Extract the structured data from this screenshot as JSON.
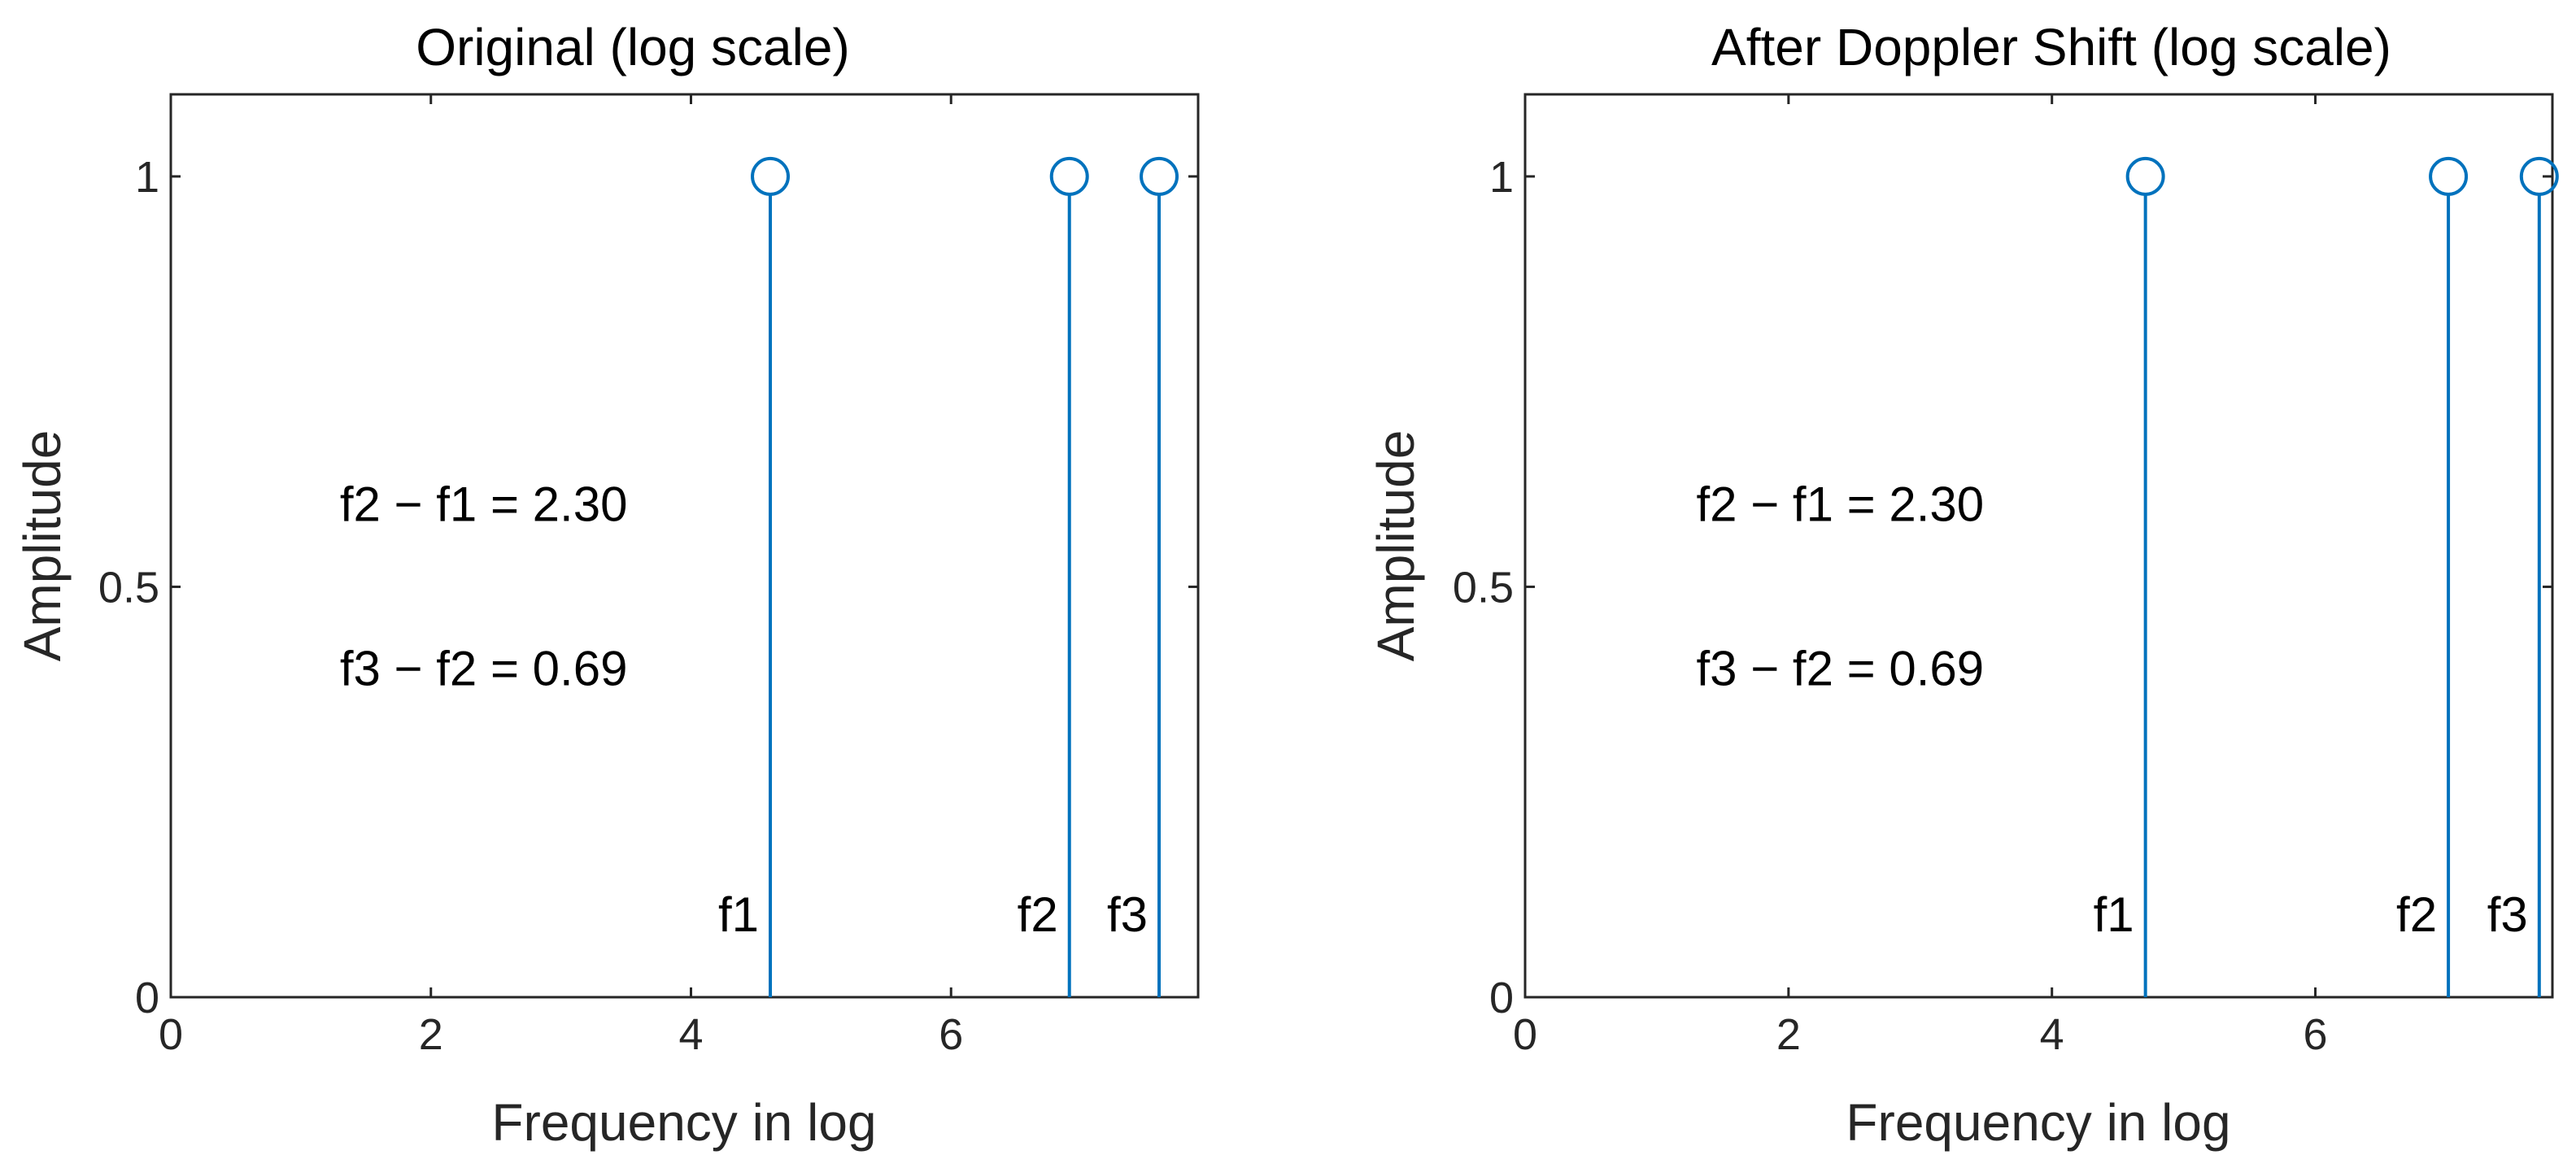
{
  "chart_data": [
    {
      "type": "stem",
      "title": "Original (log scale)",
      "xlabel": "Frequency in log",
      "ylabel": "Amplitude",
      "xlim": [
        0,
        7.9
      ],
      "ylim": [
        0,
        1.1
      ],
      "xticks": [
        0,
        2,
        4,
        6
      ],
      "yticks": [
        0,
        0.5,
        1
      ],
      "ytick_labels": [
        "0",
        "0.5",
        "1"
      ],
      "grid": false,
      "series": [
        {
          "x": [
            4.61,
            6.91,
            7.6
          ],
          "y": [
            1,
            1,
            1
          ],
          "color": "#0072BD"
        }
      ],
      "point_labels": [
        {
          "text": "f1",
          "x": 4.61,
          "y": 0.1
        },
        {
          "text": "f2",
          "x": 6.91,
          "y": 0.1
        },
        {
          "text": "f3",
          "x": 7.6,
          "y": 0.1
        }
      ],
      "annotations": [
        {
          "text": "f2 − f1 = 2.30",
          "x": 1.3,
          "y": 0.6
        },
        {
          "text": "f3 − f2 = 0.69",
          "x": 1.3,
          "y": 0.4
        }
      ]
    },
    {
      "type": "stem",
      "title": "After Doppler Shift (log scale)",
      "xlabel": "Frequency in log",
      "ylabel": "Amplitude",
      "xlim": [
        0,
        7.8
      ],
      "ylim": [
        0,
        1.1
      ],
      "xticks": [
        0,
        2,
        4,
        6
      ],
      "yticks": [
        0,
        0.5,
        1
      ],
      "ytick_labels": [
        "0",
        "0.5",
        "1"
      ],
      "grid": false,
      "series": [
        {
          "x": [
            4.71,
            7.01,
            7.7
          ],
          "y": [
            1,
            1,
            1
          ],
          "color": "#0072BD"
        }
      ],
      "point_labels": [
        {
          "text": "f1",
          "x": 4.71,
          "y": 0.1
        },
        {
          "text": "f2",
          "x": 7.01,
          "y": 0.1
        },
        {
          "text": "f3",
          "x": 7.7,
          "y": 0.1
        }
      ],
      "annotations": [
        {
          "text": "f2 − f1 = 2.30",
          "x": 1.3,
          "y": 0.6
        },
        {
          "text": "f3 − f2 = 0.69",
          "x": 1.3,
          "y": 0.4
        }
      ]
    }
  ]
}
